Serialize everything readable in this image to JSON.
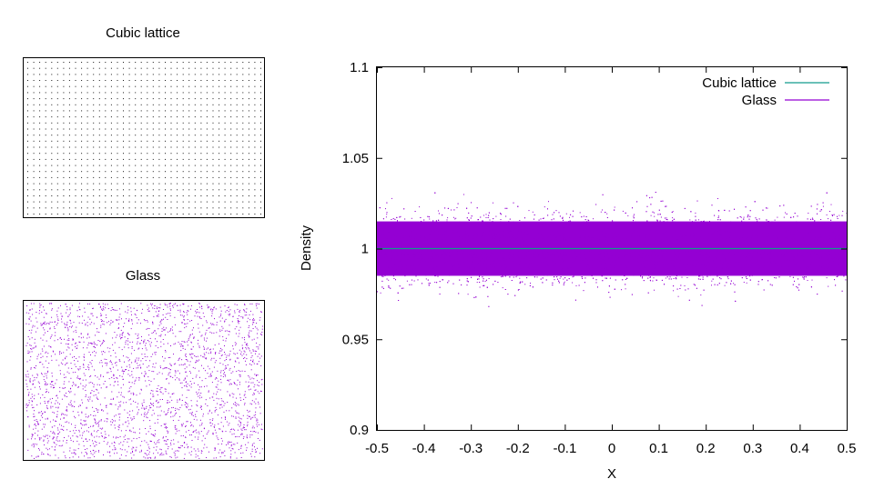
{
  "colors": {
    "cubic": "#109b8d",
    "glass": "#9400d3",
    "cubic_dots": "#1a1a1a",
    "glass_dots": "#9400d3",
    "axis": "#000000",
    "background": "#ffffff"
  },
  "chart_data": [
    {
      "type": "scatter",
      "title": "Cubic lattice",
      "xlabel": "",
      "ylabel": "",
      "axes_ticks": false,
      "grid": false,
      "description_of_points": "regular cubic grid",
      "grid_columns": 40,
      "grid_rows": 26
    },
    {
      "type": "scatter",
      "title": "Glass",
      "xlabel": "",
      "ylabel": "",
      "axes_ticks": false,
      "grid": false,
      "description_of_points": "disordered glass-like particle distribution",
      "point_count": 2600
    },
    {
      "type": "scatter",
      "title": "",
      "xlabel": "X",
      "ylabel": "Density",
      "xlim": [
        -0.5,
        0.5
      ],
      "ylim": [
        0.9,
        1.1
      ],
      "xticks": [
        "-0.5",
        "-0.4",
        "-0.3",
        "-0.2",
        "-0.1",
        "0",
        "0.1",
        "0.2",
        "0.3",
        "0.4",
        "0.5"
      ],
      "yticks": [
        "0.9",
        "0.95",
        "1",
        "1.05",
        "1.1"
      ],
      "legend_position": "top-right",
      "grid": false,
      "series": [
        {
          "name": "Cubic lattice",
          "style": "line",
          "x": [
            -0.5,
            0.5
          ],
          "y": [
            1.0,
            1.0
          ]
        },
        {
          "name": "Glass",
          "style": "points",
          "x_range": [
            -0.5,
            0.5
          ],
          "y_center": 1.0,
          "y_dense_band": [
            0.985,
            1.015
          ],
          "y_outlier_extent": [
            0.963,
            1.033
          ]
        }
      ]
    }
  ]
}
